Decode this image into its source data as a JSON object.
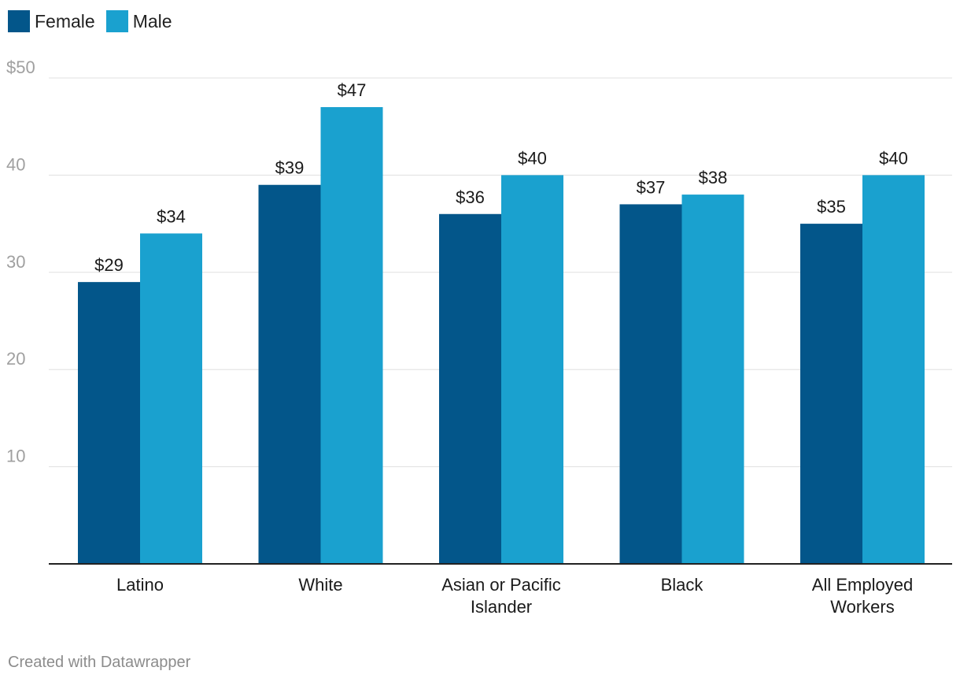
{
  "chart_data": {
    "type": "bar",
    "categories": [
      [
        "Latino"
      ],
      [
        "White"
      ],
      [
        "Asian or Pacific",
        "Islander"
      ],
      [
        "Black"
      ],
      [
        "All Employed",
        "Workers"
      ]
    ],
    "series": [
      {
        "name": "Female",
        "color": "#03568a",
        "values": [
          29,
          39,
          36,
          37,
          35
        ],
        "labels": [
          "$29",
          "$39",
          "$36",
          "$37",
          "$35"
        ]
      },
      {
        "name": "Male",
        "color": "#1aa1cf",
        "values": [
          34,
          47,
          40,
          38,
          40
        ],
        "labels": [
          "$34",
          "$47",
          "$40",
          "$38",
          "$40"
        ]
      }
    ],
    "y_ticks": [
      {
        "value": 10,
        "label": "10"
      },
      {
        "value": 20,
        "label": "20"
      },
      {
        "value": 30,
        "label": "30"
      },
      {
        "value": 40,
        "label": "40"
      },
      {
        "value": 50,
        "label": "$50"
      }
    ],
    "ylim": [
      0,
      50
    ],
    "grid": true,
    "legend": "top-left",
    "title": "",
    "xlabel": "",
    "ylabel": ""
  },
  "footer": {
    "credit": "Created with Datawrapper"
  }
}
